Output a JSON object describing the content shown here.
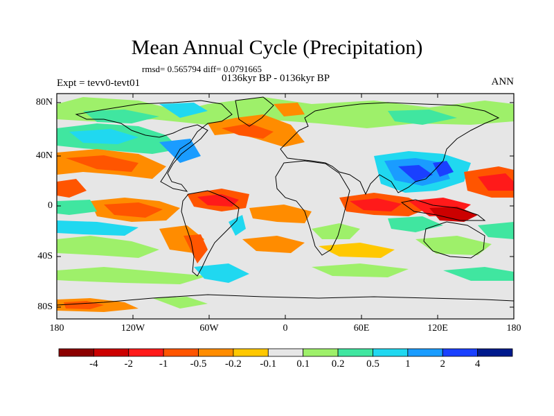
{
  "title": "Mean Annual Cycle (Precipitation)",
  "stats": "rmsd= 0.565794  diff= 0.0791665",
  "period": "0136kyr BP - 0136kyr BP",
  "experiment": "Expt = tevv0-tevt01",
  "season": "ANN",
  "lat_labels": [
    "80N",
    "40N",
    "0",
    "40S",
    "80S"
  ],
  "lon_labels": [
    "180",
    "120W",
    "60W",
    "0",
    "60E",
    "120E",
    "180"
  ],
  "colorbar": {
    "labels": [
      "-4",
      "-2",
      "-1",
      "-0.5",
      "-0.2",
      "-0.1",
      "0.1",
      "0.2",
      "0.5",
      "1",
      "2",
      "4"
    ],
    "colors": [
      "#8b0000",
      "#cc0000",
      "#ff1a1a",
      "#ff5500",
      "#ff8c00",
      "#ffc800",
      "#e6e6e6",
      "#9ef06a",
      "#40e6a0",
      "#20d8f0",
      "#1a9cff",
      "#1a40ff",
      "#001a8c"
    ]
  }
}
